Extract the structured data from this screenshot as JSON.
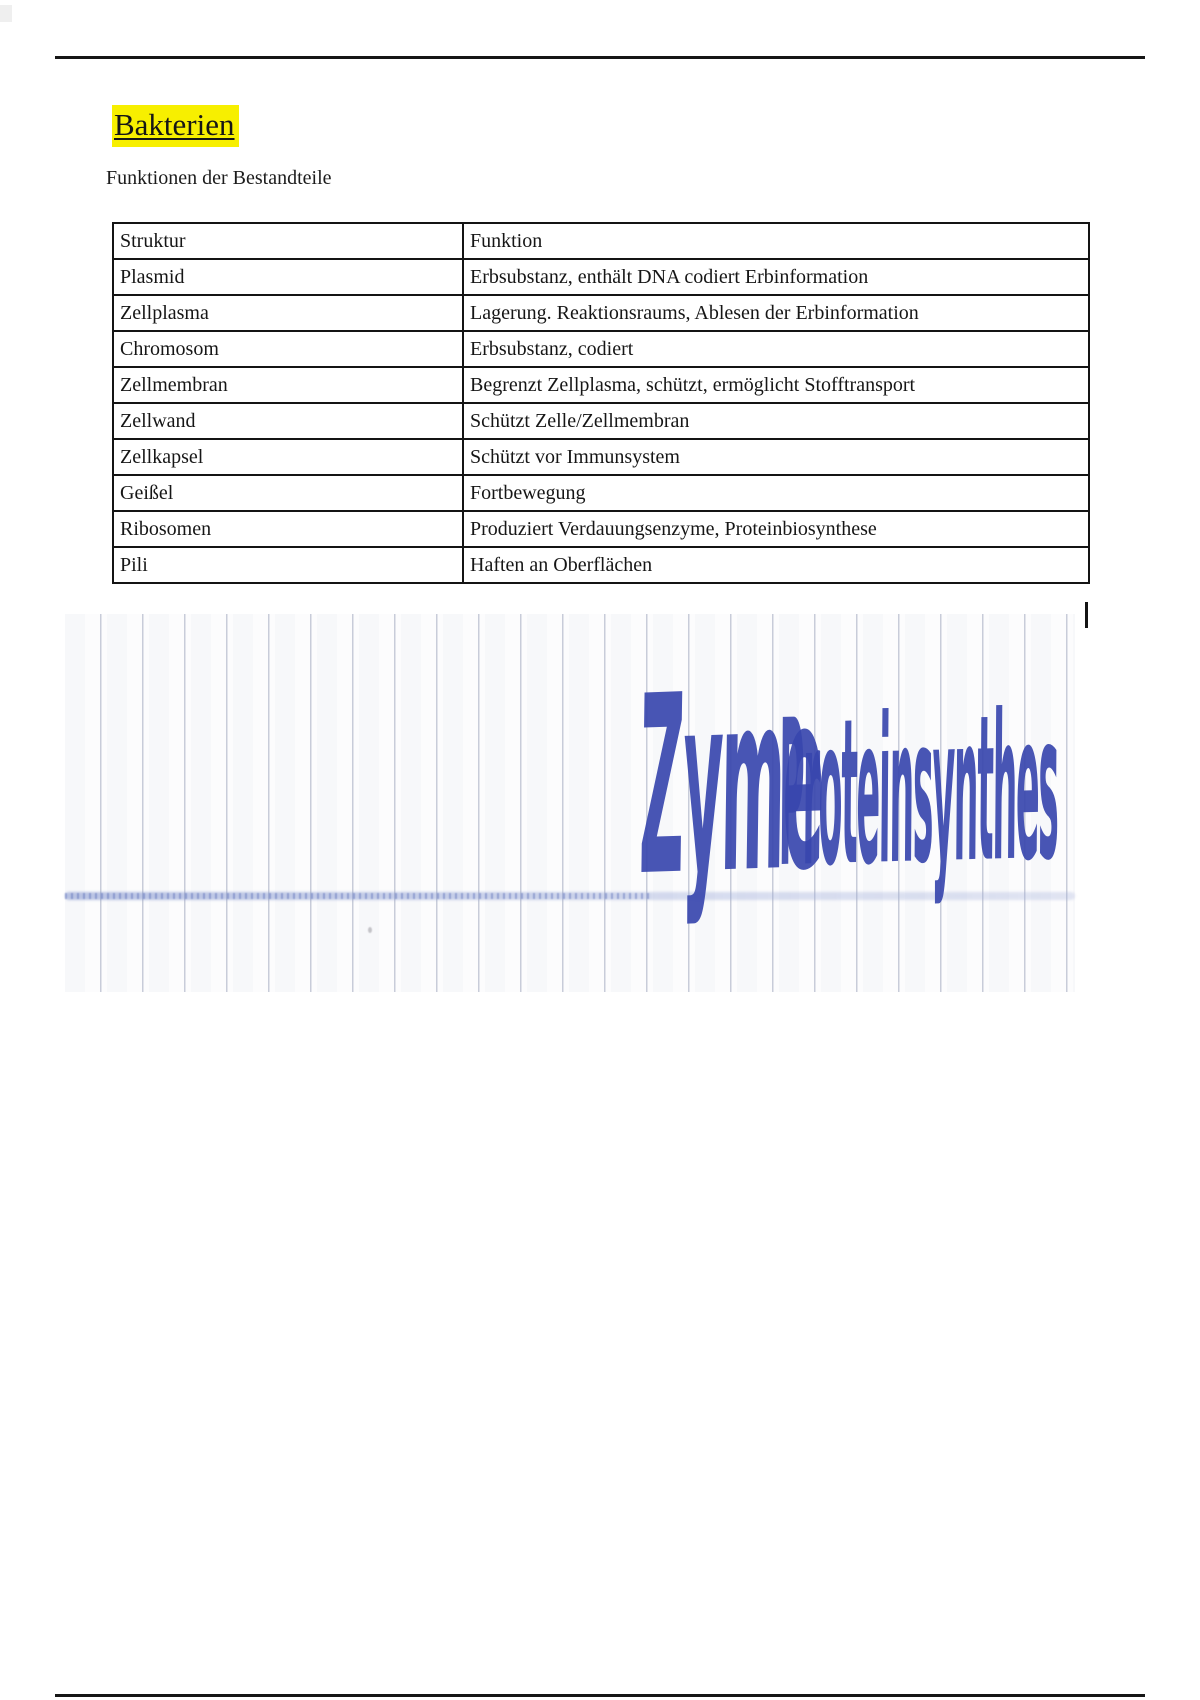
{
  "page": {
    "title": "Bakterien",
    "subtitle": "Funktionen der Bestandteile"
  },
  "table": {
    "columns": [
      "Struktur",
      "Funktion"
    ],
    "rows": [
      {
        "struktur": "Plasmid",
        "funktion": "Erbsubstanz, enthält DNA codiert Erbinformation"
      },
      {
        "struktur": "Zellplasma",
        "funktion": "Lagerung. Reaktionsraums, Ablesen der Erbinformation"
      },
      {
        "struktur": "Chromosom",
        "funktion": "Erbsubstanz, codiert"
      },
      {
        "struktur": "Zellmembran",
        "funktion": "Begrenzt Zellplasma, schützt, ermöglicht Stofftransport"
      },
      {
        "struktur": "Zellwand",
        "funktion": "Schützt Zelle/Zellmembran"
      },
      {
        "struktur": "Zellkapsel",
        "funktion": "Schützt vor Immunsystem"
      },
      {
        "struktur": "Geißel",
        "funktion": "Fortbewegung"
      },
      {
        "struktur": "Ribosomen",
        "funktion": "Produziert Verdauungsenzyme, Proteinbiosynthese"
      },
      {
        "struktur": "Pili",
        "funktion": "Haften an Oberflächen"
      }
    ]
  },
  "handwriting": {
    "word1": "Zyme",
    "word2": "Proteinsynthes"
  },
  "colors": {
    "highlight_yellow": "#f7ef00",
    "ink_blue": "#3847ae",
    "paper_line": "#c8ccd9",
    "border_black": "#141414"
  }
}
